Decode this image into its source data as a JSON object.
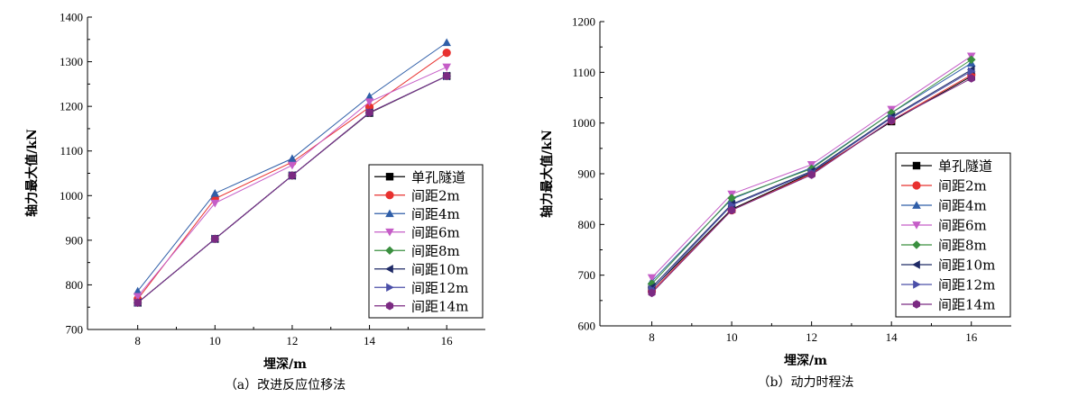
{
  "chart_data": [
    {
      "type": "line",
      "caption": "（a）改进反应位移法",
      "xlabel": "埋深/m",
      "ylabel": "轴力最大值/kN",
      "x": [
        8,
        10,
        12,
        14,
        16
      ],
      "xlim": [
        6.7,
        17.0
      ],
      "ylim": [
        700,
        1400
      ],
      "yticks": [
        700,
        800,
        900,
        1000,
        1100,
        1200,
        1300,
        1400
      ],
      "legend_position": "bottom-right",
      "series": [
        {
          "name": "单孔隧道",
          "marker": "square",
          "color": "#000000",
          "values": [
            760,
            903,
            1045,
            1185,
            1268
          ]
        },
        {
          "name": "间距2m",
          "marker": "circle",
          "color": "#e8312f",
          "values": [
            768,
            993,
            1075,
            1198,
            1320
          ]
        },
        {
          "name": "间距4m",
          "marker": "triangle-up",
          "color": "#2f5ea8",
          "values": [
            786,
            1005,
            1083,
            1222,
            1343
          ]
        },
        {
          "name": "间距6m",
          "marker": "triangle-down",
          "color": "#c55dc7",
          "values": [
            774,
            983,
            1068,
            1210,
            1288
          ]
        },
        {
          "name": "间距8m",
          "marker": "diamond",
          "color": "#3a8f3f",
          "values": [
            760,
            903,
            1045,
            1186,
            1268
          ]
        },
        {
          "name": "间距10m",
          "marker": "triangle-left",
          "color": "#1f2a66",
          "values": [
            760,
            903,
            1045,
            1186,
            1268
          ]
        },
        {
          "name": "间距12m",
          "marker": "triangle-right",
          "color": "#4b4fa8",
          "values": [
            760,
            903,
            1045,
            1186,
            1268
          ]
        },
        {
          "name": "间距14m",
          "marker": "hexagon",
          "color": "#7b2a82",
          "values": [
            760,
            903,
            1045,
            1186,
            1268
          ]
        }
      ]
    },
    {
      "type": "line",
      "caption": "（b）动力时程法",
      "xlabel": "埋深/m",
      "ylabel": "轴力最大值/kN",
      "x": [
        8,
        10,
        12,
        14,
        16
      ],
      "xlim": [
        6.7,
        17.0
      ],
      "ylim": [
        600,
        1200
      ],
      "yticks": [
        600,
        700,
        800,
        900,
        1000,
        1100,
        1200
      ],
      "legend_position": "bottom-right",
      "series": [
        {
          "name": "单孔隧道",
          "marker": "square",
          "color": "#000000",
          "values": [
            672,
            830,
            902,
            1003,
            1092
          ]
        },
        {
          "name": "间距2m",
          "marker": "circle",
          "color": "#e8312f",
          "values": [
            668,
            828,
            900,
            1005,
            1095
          ]
        },
        {
          "name": "间距4m",
          "marker": "triangle-up",
          "color": "#2f5ea8",
          "values": [
            688,
            850,
            912,
            1020,
            1118
          ]
        },
        {
          "name": "间距6m",
          "marker": "triangle-down",
          "color": "#c55dc7",
          "values": [
            695,
            860,
            918,
            1027,
            1132
          ]
        },
        {
          "name": "间距8m",
          "marker": "diamond",
          "color": "#3a8f3f",
          "values": [
            683,
            852,
            910,
            1020,
            1125
          ]
        },
        {
          "name": "间距10m",
          "marker": "triangle-left",
          "color": "#1f2a66",
          "values": [
            676,
            840,
            905,
            1012,
            1105
          ]
        },
        {
          "name": "间距12m",
          "marker": "triangle-right",
          "color": "#4b4fa8",
          "values": [
            672,
            838,
            903,
            1010,
            1102
          ]
        },
        {
          "name": "间距14m",
          "marker": "hexagon",
          "color": "#7b2a82",
          "values": [
            665,
            828,
            898,
            1005,
            1088
          ]
        }
      ]
    }
  ]
}
